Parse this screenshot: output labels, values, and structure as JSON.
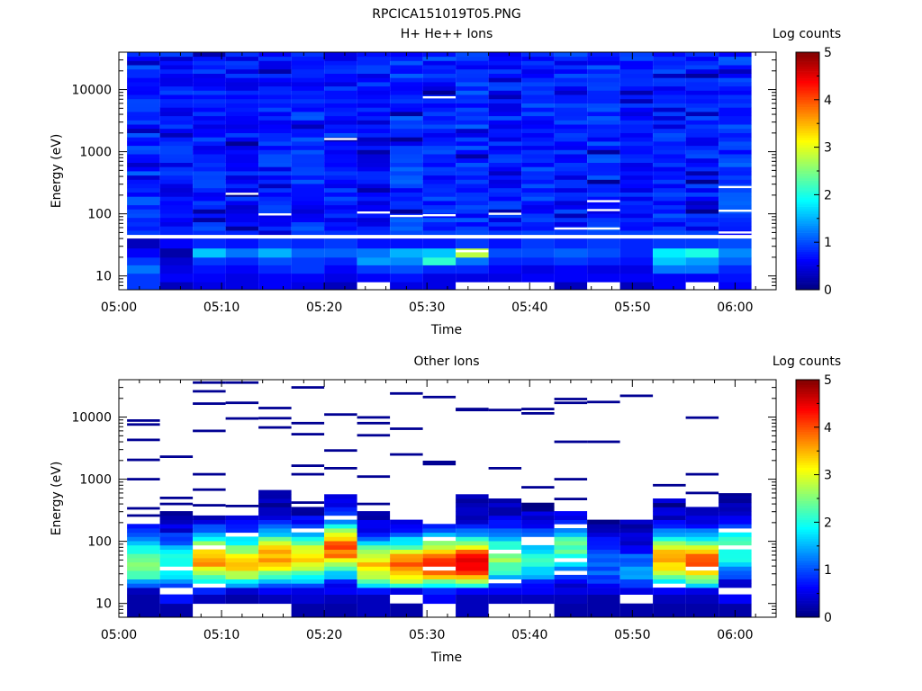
{
  "figure": {
    "title": "RPCICA151019T05.PNG"
  },
  "colormap": {
    "name": "jet",
    "stops": [
      "#00007f",
      "#0000ff",
      "#007fff",
      "#00ffff",
      "#7fff7f",
      "#ffff00",
      "#ff7f00",
      "#ff0000",
      "#7f0000"
    ],
    "missing_color": "#ffffff"
  },
  "chart_data": [
    {
      "type": "heatmap",
      "title": "H+ He++ Ions",
      "xlabel": "Time",
      "ylabel": "Energy (eV)",
      "x_ticks": [
        "05:00",
        "05:10",
        "05:20",
        "05:30",
        "05:40",
        "05:50",
        "06:00"
      ],
      "x_range_minutes": [
        0,
        64
      ],
      "y_scale": "log",
      "y_range": [
        6,
        40000
      ],
      "y_ticks": [
        "10",
        "100",
        "1000",
        "10000"
      ],
      "colorbar": {
        "label": "Log counts",
        "range": [
          0,
          5
        ],
        "ticks": [
          "0",
          "1",
          "2",
          "3",
          "4",
          "5"
        ]
      },
      "columns": [
        {
          "t0": 0.8,
          "t1": 4.0,
          "base": 0.85,
          "low": [
            0.9,
            0.9,
            1.2,
            0.9,
            0.6,
            0.3
          ],
          "gaps": []
        },
        {
          "t0": 4.0,
          "t1": 7.2,
          "base": 0.7,
          "low": [
            0.3,
            0.6,
            0.5,
            0.4,
            0.2,
            0.6
          ],
          "gaps": []
        },
        {
          "t0": 7.2,
          "t1": 10.4,
          "base": 0.75,
          "low": [
            0.5,
            0.6,
            0.7,
            0.9,
            1.6,
            0.8
          ],
          "gaps": []
        },
        {
          "t0": 10.4,
          "t1": 13.6,
          "base": 0.7,
          "low": [
            0.5,
            0.5,
            0.6,
            0.8,
            1.2,
            0.7
          ],
          "gaps": [
            210
          ]
        },
        {
          "t0": 13.6,
          "t1": 16.8,
          "base": 0.75,
          "low": [
            0.6,
            0.6,
            0.8,
            1.0,
            1.5,
            0.9
          ],
          "gaps": [
            98
          ]
        },
        {
          "t0": 16.8,
          "t1": 20.0,
          "base": 0.8,
          "low": [
            0.5,
            0.6,
            0.9,
            0.9,
            1.1,
            0.8
          ],
          "gaps": []
        },
        {
          "t0": 20.0,
          "t1": 23.2,
          "base": 0.75,
          "low": [
            0.3,
            0.5,
            0.6,
            0.8,
            1.1,
            0.9
          ],
          "gaps": [
            1600
          ]
        },
        {
          "t0": 23.2,
          "t1": 26.4,
          "base": 0.7,
          "low": [
            null,
            0.6,
            0.9,
            1.4,
            1.2,
            0.7
          ],
          "gaps": [
            105
          ]
        },
        {
          "t0": 26.4,
          "t1": 29.6,
          "base": 0.85,
          "low": [
            0.5,
            0.7,
            1.0,
            1.3,
            1.5,
            0.7
          ],
          "gaps": [
            92
          ]
        },
        {
          "t0": 29.6,
          "t1": 32.8,
          "base": 0.8,
          "low": [
            0.5,
            0.5,
            0.8,
            2.1,
            1.6,
            0.7
          ],
          "gaps": [
            7500,
            95
          ]
        },
        {
          "t0": 32.8,
          "t1": 36.0,
          "base": 0.85,
          "low": [
            null,
            0.5,
            0.8,
            1.2,
            2.8,
            0.9
          ],
          "gaps": [
            25
          ]
        },
        {
          "t0": 36.0,
          "t1": 39.2,
          "base": 0.75,
          "low": [
            null,
            0.5,
            0.6,
            0.8,
            1.0,
            0.7
          ],
          "gaps": [
            100
          ]
        },
        {
          "t0": 39.2,
          "t1": 42.4,
          "base": 0.8,
          "low": [
            null,
            0.6,
            0.5,
            0.8,
            1.0,
            0.9
          ],
          "gaps": []
        },
        {
          "t0": 42.4,
          "t1": 45.6,
          "base": 0.75,
          "low": [
            0.3,
            0.6,
            0.6,
            0.9,
            1.1,
            0.8
          ],
          "gaps": [
            58
          ]
        },
        {
          "t0": 45.6,
          "t1": 48.8,
          "base": 0.8,
          "low": [
            null,
            0.6,
            0.5,
            0.8,
            1.0,
            0.9
          ],
          "gaps": [
            160,
            115,
            58
          ]
        },
        {
          "t0": 48.8,
          "t1": 52.0,
          "base": 0.75,
          "low": [
            0.3,
            0.6,
            0.5,
            0.7,
            0.8,
            0.8
          ],
          "gaps": []
        },
        {
          "t0": 52.0,
          "t1": 55.2,
          "base": 0.8,
          "low": [
            0.6,
            0.6,
            1.2,
            1.6,
            1.8,
            0.9
          ],
          "gaps": []
        },
        {
          "t0": 55.2,
          "t1": 58.4,
          "base": 0.75,
          "low": [
            null,
            0.6,
            1.2,
            1.4,
            2.0,
            0.9
          ],
          "gaps": []
        },
        {
          "t0": 58.4,
          "t1": 61.6,
          "base": 0.85,
          "low": [
            0.6,
            0.7,
            0.8,
            1.1,
            1.3,
            1.0
          ],
          "gaps": [
            270,
            50,
            112
          ]
        }
      ]
    },
    {
      "type": "heatmap",
      "title": "Other Ions",
      "xlabel": "Time",
      "ylabel": "Energy (eV)",
      "x_ticks": [
        "05:00",
        "05:10",
        "05:20",
        "05:30",
        "05:40",
        "05:50",
        "06:00"
      ],
      "x_range_minutes": [
        0,
        64
      ],
      "y_scale": "log",
      "y_range": [
        6,
        40000
      ],
      "y_ticks": [
        "10",
        "100",
        "1000",
        "10000"
      ],
      "colorbar": {
        "label": "Log counts",
        "range": [
          0,
          5
        ],
        "ticks": [
          "0",
          "1",
          "2",
          "3",
          "4",
          "5"
        ]
      },
      "columns": [
        {
          "t0": 0.8,
          "t1": 4.0,
          "peak": 2.6,
          "peakE": 42,
          "lowE": 170,
          "bottom": [
            0.2,
            0.2,
            0.3
          ],
          "sparse": [
            8800,
            7600,
            4300,
            2050,
            1000,
            340,
            260
          ]
        },
        {
          "t0": 4.0,
          "t1": 7.2,
          "peak": 2.1,
          "peakE": 40,
          "lowE": 300,
          "bottom": [
            0.2,
            0.7,
            null
          ],
          "sparse": [
            2300,
            500,
            400
          ]
        },
        {
          "t0": 7.2,
          "t1": 10.4,
          "peak": 3.6,
          "peakE": 48,
          "lowE": 230,
          "bottom": [
            null,
            0.3,
            0.8
          ],
          "sparse": [
            36000,
            26000,
            16500,
            6000,
            1200,
            680,
            380
          ]
        },
        {
          "t0": 10.4,
          "t1": 13.6,
          "peak": 3.3,
          "peakE": 42,
          "lowE": 260,
          "bottom": [
            null,
            0.2,
            0.4
          ],
          "sparse": [
            36000,
            17000,
            9500,
            370
          ]
        },
        {
          "t0": 13.6,
          "t1": 16.8,
          "peak": 3.6,
          "peakE": 52,
          "lowE": 640,
          "bottom": [
            null,
            0.3,
            0.6
          ],
          "sparse": [
            14000,
            9600,
            6800
          ]
        },
        {
          "t0": 16.8,
          "t1": 20.0,
          "peak": 3.2,
          "peakE": 50,
          "lowE": 350,
          "bottom": [
            0.2,
            0.4,
            0.5
          ],
          "sparse": [
            30000,
            8000,
            5300,
            1650,
            1200,
            420
          ]
        },
        {
          "t0": 20.0,
          "t1": 23.2,
          "peak": 3.9,
          "peakE": 70,
          "lowE": 570,
          "bottom": [
            0.2,
            0.3,
            0.6
          ],
          "sparse": [
            11000,
            2900,
            1500
          ]
        },
        {
          "t0": 23.2,
          "t1": 26.4,
          "peak": 3.3,
          "peakE": 38,
          "lowE": 270,
          "bottom": [
            0.3,
            0.3,
            0.7
          ],
          "sparse": [
            9900,
            8000,
            5100,
            1100,
            400
          ]
        },
        {
          "t0": 26.4,
          "t1": 29.6,
          "peak": 3.9,
          "peakE": 38,
          "lowE": 200,
          "bottom": [
            0.2,
            null,
            0.5
          ],
          "sparse": [
            24000,
            6500,
            2500
          ]
        },
        {
          "t0": 29.6,
          "t1": 32.8,
          "peak": 4.2,
          "peakE": 42,
          "lowE": 180,
          "bottom": [
            null,
            0.6,
            0.8
          ],
          "sparse": [
            21000,
            1900,
            1750
          ]
        },
        {
          "t0": 32.8,
          "t1": 36.0,
          "peak": 4.5,
          "peakE": 42,
          "lowE": 560,
          "bottom": [
            0.3,
            0.3,
            0.6
          ],
          "sparse": [
            13500,
            13000
          ]
        },
        {
          "t0": 36.0,
          "t1": 39.2,
          "peak": 2.6,
          "peakE": 50,
          "lowE": 450,
          "bottom": [
            null,
            0.3,
            0.6
          ],
          "sparse": [
            13000,
            1500
          ]
        },
        {
          "t0": 39.2,
          "t1": 42.4,
          "peak": 2.0,
          "peakE": 50,
          "lowE": 400,
          "bottom": [
            null,
            0.3,
            0.6
          ],
          "sparse": [
            13500,
            11500,
            740
          ]
        },
        {
          "t0": 42.4,
          "t1": 45.6,
          "peak": 2.3,
          "peakE": 70,
          "lowE": 300,
          "bottom": [
            0.2,
            0.3,
            0.5
          ],
          "sparse": [
            19500,
            17000,
            4000,
            1000,
            480
          ]
        },
        {
          "t0": 45.6,
          "t1": 48.8,
          "peak": 1.2,
          "peakE": 40,
          "lowE": 200,
          "bottom": [
            0.2,
            0.2,
            0.5
          ],
          "sparse": [
            17500,
            4000
          ]
        },
        {
          "t0": 48.8,
          "t1": 52.0,
          "peak": 1.3,
          "peakE": 30,
          "lowE": 220,
          "bottom": [
            0.2,
            null,
            0.5
          ],
          "sparse": [
            22000
          ]
        },
        {
          "t0": 52.0,
          "t1": 55.2,
          "peak": 3.6,
          "peakE": 48,
          "lowE": 450,
          "bottom": [
            0.2,
            0.3,
            0.6
          ],
          "sparse": [
            800
          ]
        },
        {
          "t0": 55.2,
          "t1": 58.4,
          "peak": 3.9,
          "peakE": 44,
          "lowE": 340,
          "bottom": [
            0.2,
            0.3,
            0.5
          ],
          "sparse": [
            9800,
            1200,
            600
          ]
        },
        {
          "t0": 58.4,
          "t1": 61.6,
          "peak": 2.2,
          "peakE": 70,
          "lowE": 560,
          "bottom": [
            0.2,
            0.6,
            null
          ],
          "sparse": [
            570
          ]
        }
      ]
    }
  ]
}
